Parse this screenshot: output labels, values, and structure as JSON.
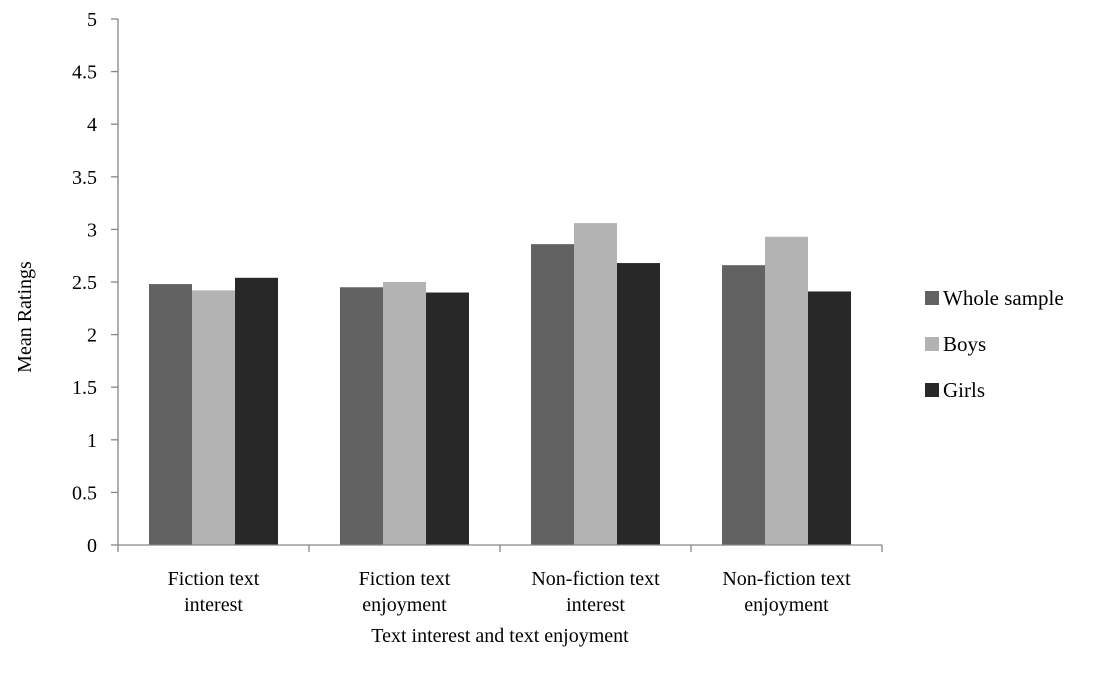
{
  "chart_data": {
    "type": "bar",
    "title": "",
    "xlabel": "Text interest and text enjoyment",
    "ylabel": "Mean Ratings",
    "ylim": [
      0,
      5
    ],
    "yticks": [
      "0",
      "0.5",
      "1",
      "1.5",
      "2",
      "2.5",
      "3",
      "3.5",
      "4",
      "4.5",
      "5"
    ],
    "grid": false,
    "legend_position": "right",
    "categories": [
      [
        "Fiction text",
        "interest"
      ],
      [
        "Fiction text",
        "enjoyment"
      ],
      [
        "Non-fiction text",
        "interest"
      ],
      [
        "Non-fiction text",
        "enjoyment"
      ]
    ],
    "series": [
      {
        "name": "Whole sample",
        "color": "#626262",
        "values": [
          2.48,
          2.45,
          2.86,
          2.66
        ]
      },
      {
        "name": "Boys",
        "color": "#b3b3b3",
        "values": [
          2.42,
          2.5,
          3.06,
          2.93
        ]
      },
      {
        "name": "Girls",
        "color": "#282828",
        "values": [
          2.54,
          2.4,
          2.68,
          2.41
        ]
      }
    ]
  }
}
